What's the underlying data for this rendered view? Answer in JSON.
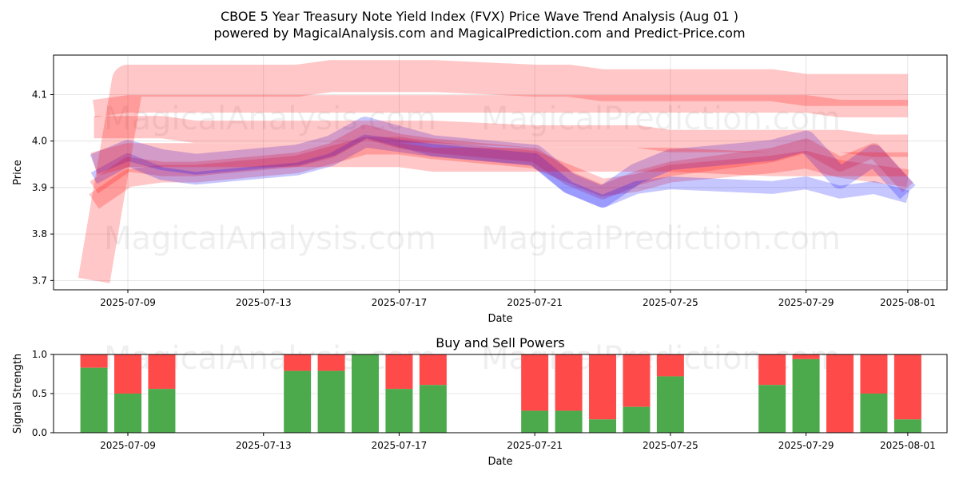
{
  "title_line1": "CBOE 5 Year Treasury Note Yield Index (FVX) Price Wave Trend Analysis (Aug 01 )",
  "title_line2": "powered by MagicalAnalysis.com and MagicalPrediction.com and Predict-Price.com",
  "watermarks": [
    "MagicalAnalysis.com",
    "MagicalPrediction.com"
  ],
  "chart_data": [
    {
      "type": "area",
      "title": "",
      "xlabel": "Date",
      "ylabel": "Price",
      "ylim": [
        3.68,
        4.185
      ],
      "x_ticks": [
        "2025-07-09",
        "2025-07-13",
        "2025-07-17",
        "2025-07-21",
        "2025-07-25",
        "2025-07-29",
        "2025-08-01"
      ],
      "y_ticks": [
        3.7,
        3.8,
        3.9,
        4.0,
        4.1
      ],
      "grid": true,
      "dates": [
        "2025-07-08",
        "2025-07-09",
        "2025-07-10",
        "2025-07-11",
        "2025-07-14",
        "2025-07-15",
        "2025-07-16",
        "2025-07-17",
        "2025-07-18",
        "2025-07-21",
        "2025-07-22",
        "2025-07-23",
        "2025-07-24",
        "2025-07-25",
        "2025-07-28",
        "2025-07-29",
        "2025-07-30",
        "2025-07-31",
        "2025-08-01"
      ],
      "series": [
        {
          "color": "#ff0000",
          "values": [
            3.87,
            3.92,
            3.93,
            3.93,
            3.95,
            3.97,
            3.99,
            3.99,
            3.98,
            3.96,
            3.93,
            3.9,
            3.91,
            3.93,
            3.95,
            3.96,
            3.94,
            3.93,
            3.92
          ]
        },
        {
          "color": "#ff0000",
          "values": [
            3.9,
            3.95,
            3.94,
            3.94,
            3.96,
            3.98,
            4.02,
            4.0,
            3.99,
            3.97,
            3.92,
            3.89,
            3.92,
            3.94,
            3.97,
            3.99,
            3.95,
            3.98,
            3.9
          ]
        },
        {
          "color": "#0000ff",
          "values": [
            3.95,
            3.98,
            3.96,
            3.95,
            3.97,
            3.99,
            4.03,
            4.01,
            3.99,
            3.97,
            3.91,
            3.88,
            3.93,
            3.96,
            3.98,
            4.0,
            3.92,
            3.97,
            3.89
          ]
        },
        {
          "color": "#0000ff",
          "values": [
            3.92,
            3.96,
            3.93,
            3.92,
            3.94,
            3.96,
            4.0,
            3.99,
            3.98,
            3.96,
            3.9,
            3.87,
            3.9,
            3.91,
            3.9,
            3.91,
            3.89,
            3.9,
            3.88
          ]
        },
        {
          "color": "#ff0000",
          "values": [
            3.7,
            4.13,
            4.13,
            4.13,
            4.13,
            4.14,
            4.14,
            4.14,
            4.14,
            4.13,
            4.13,
            4.12,
            4.12,
            4.12,
            4.12,
            4.11,
            4.11,
            4.11,
            4.11
          ]
        },
        {
          "color": "#ff0000",
          "values": [
            4.03,
            4.03,
            4.03,
            4.02,
            4.02,
            4.02,
            4.02,
            4.02,
            4.02,
            4.01,
            4.01,
            4.01,
            4.01,
            4.0,
            4.0,
            4.0,
            4.0,
            3.99,
            3.99
          ]
        },
        {
          "color": "#ff0000",
          "values": [
            4.07,
            4.08,
            4.08,
            4.08,
            4.08,
            4.08,
            4.08,
            4.08,
            4.08,
            4.08,
            4.08,
            4.08,
            4.08,
            4.08,
            4.08,
            4.08,
            4.07,
            4.07,
            4.07
          ]
        },
        {
          "color": "#ff0000",
          "values": [
            3.95,
            3.97,
            3.97,
            3.97,
            3.97,
            3.97,
            3.97,
            3.97,
            3.96,
            3.96,
            3.96,
            3.96,
            3.96,
            3.96,
            3.95,
            3.95,
            3.95,
            3.95,
            3.95
          ]
        }
      ]
    },
    {
      "type": "bar",
      "title": "Buy and Sell Powers",
      "xlabel": "Date",
      "ylabel": "Signal Strength",
      "ylim": [
        0,
        1.0
      ],
      "x_ticks": [
        "2025-07-09",
        "2025-07-13",
        "2025-07-17",
        "2025-07-21",
        "2025-07-25",
        "2025-07-29",
        "2025-08-01"
      ],
      "y_ticks": [
        "0.0",
        "0.5",
        "1.0"
      ],
      "buy_color": "#4caa4c",
      "sell_color": "#ff4a4a",
      "categories": [
        "2025-07-08",
        "2025-07-09",
        "2025-07-10",
        "2025-07-14",
        "2025-07-15",
        "2025-07-16",
        "2025-07-17",
        "2025-07-18",
        "2025-07-21",
        "2025-07-22",
        "2025-07-23",
        "2025-07-24",
        "2025-07-25",
        "2025-07-28",
        "2025-07-29",
        "2025-07-30",
        "2025-07-31",
        "2025-08-01"
      ],
      "buy": [
        0.83,
        0.5,
        0.56,
        0.79,
        0.79,
        1.0,
        0.56,
        0.61,
        0.28,
        0.28,
        0.17,
        0.33,
        0.72,
        0.61,
        0.94,
        0.0,
        0.5,
        0.17
      ]
    }
  ]
}
